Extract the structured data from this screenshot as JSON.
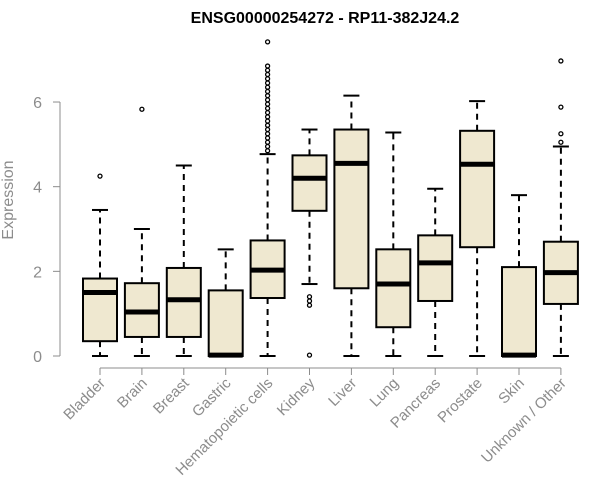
{
  "chart_data": {
    "type": "boxplot",
    "title": "ENSG00000254272 - RP11-382J24.2",
    "xlabel": "",
    "ylabel": "Expression",
    "ylim": [
      0,
      7.5
    ],
    "yticks": [
      0,
      2,
      4,
      6
    ],
    "colors": {
      "box_fill": "#efe8d0",
      "stroke": "#000000",
      "axis": "#8c8c8c"
    },
    "categories": [
      "Bladder",
      "Brain",
      "Breast",
      "Gastric",
      "Hematopoietic cells",
      "Kidney",
      "Liver",
      "Lung",
      "Pancreas",
      "Prostate",
      "Skin",
      "Unknown / Other"
    ],
    "boxes": [
      {
        "name": "Bladder",
        "min": 0,
        "q1": 0.35,
        "median": 1.5,
        "q3": 1.83,
        "max": 3.45,
        "outliers": [
          4.25
        ]
      },
      {
        "name": "Brain",
        "min": 0,
        "q1": 0.45,
        "median": 1.04,
        "q3": 1.72,
        "max": 3.0,
        "outliers": [
          5.83
        ]
      },
      {
        "name": "Breast",
        "min": 0,
        "q1": 0.45,
        "median": 1.33,
        "q3": 2.08,
        "max": 4.5,
        "outliers": []
      },
      {
        "name": "Gastric",
        "min": 0,
        "q1": 0,
        "median": 0.02,
        "q3": 1.55,
        "max": 2.52,
        "outliers": []
      },
      {
        "name": "Hematopoietic cells",
        "min": 0,
        "q1": 1.37,
        "median": 2.03,
        "q3": 2.73,
        "max": 4.77,
        "outliers": [
          4.85,
          4.95,
          5.05,
          5.15,
          5.25,
          5.35,
          5.45,
          5.55,
          5.65,
          5.75,
          5.85,
          5.95,
          6.05,
          6.15,
          6.25,
          6.35,
          6.45,
          6.55,
          6.65,
          6.75,
          6.85,
          7.42
        ]
      },
      {
        "name": "Kidney",
        "min": 1.7,
        "q1": 3.43,
        "median": 4.2,
        "q3": 4.74,
        "max": 5.35,
        "outliers": [
          1.4,
          1.3,
          1.2,
          0.02
        ]
      },
      {
        "name": "Liver",
        "min": 0,
        "q1": 1.6,
        "median": 4.55,
        "q3": 5.35,
        "max": 6.15,
        "outliers": []
      },
      {
        "name": "Lung",
        "min": 0,
        "q1": 0.68,
        "median": 1.7,
        "q3": 2.52,
        "max": 5.28,
        "outliers": []
      },
      {
        "name": "Pancreas",
        "min": 0,
        "q1": 1.3,
        "median": 2.2,
        "q3": 2.85,
        "max": 3.95,
        "outliers": []
      },
      {
        "name": "Prostate",
        "min": 0,
        "q1": 2.57,
        "median": 4.53,
        "q3": 5.32,
        "max": 6.02,
        "outliers": []
      },
      {
        "name": "Skin",
        "min": 0,
        "q1": 0,
        "median": 0.02,
        "q3": 2.1,
        "max": 3.8,
        "outliers": []
      },
      {
        "name": "Unknown / Other",
        "min": 0,
        "q1": 1.23,
        "median": 1.97,
        "q3": 2.7,
        "max": 4.95,
        "outliers": [
          5.05,
          5.25,
          5.88,
          6.97
        ]
      }
    ]
  }
}
